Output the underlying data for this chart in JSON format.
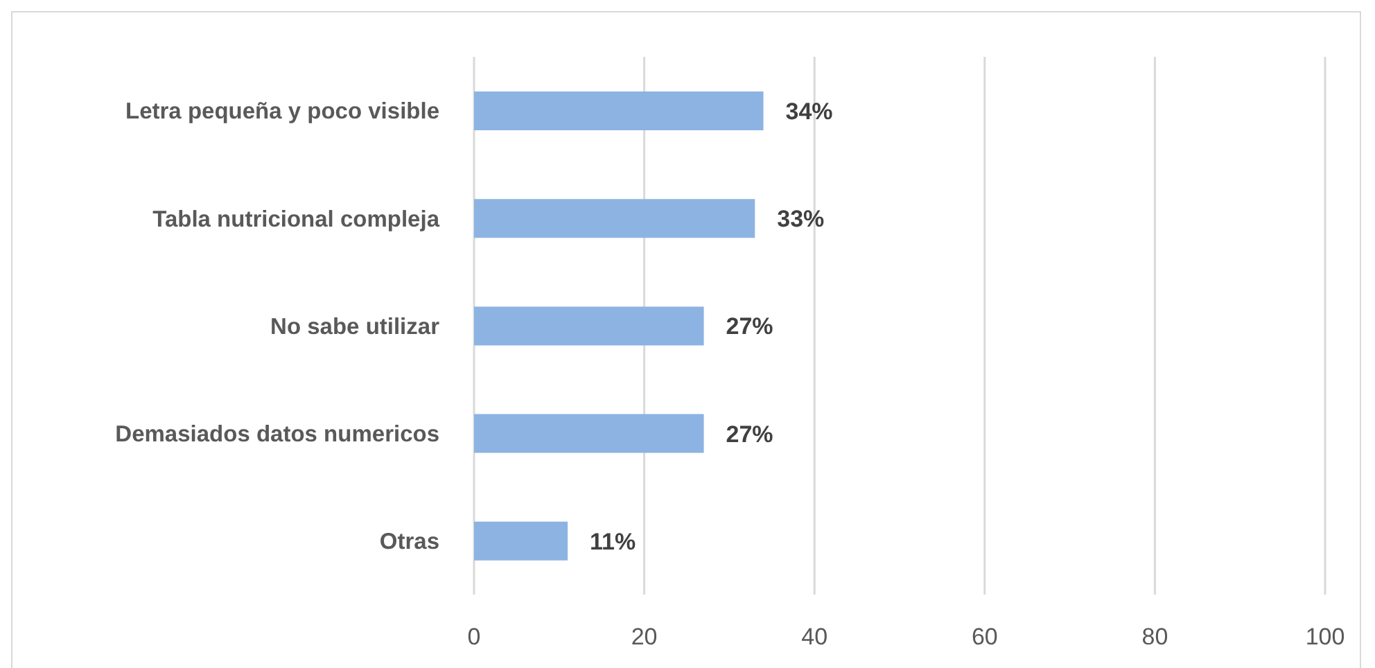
{
  "chart_data": {
    "type": "bar",
    "orientation": "horizontal",
    "categories": [
      "Letra pequeña y poco visible",
      "Tabla nutricional compleja",
      "No sabe utilizar",
      "Demasiados datos numericos",
      "Otras"
    ],
    "values": [
      34,
      33,
      27,
      27,
      11
    ],
    "color": "#8db3e2",
    "value_labels": [
      "34%",
      "33%",
      "27%",
      "27%",
      "11%"
    ],
    "xlim": [
      0,
      100
    ],
    "xticks": [
      0,
      20,
      40,
      60,
      80,
      100
    ],
    "grid": "x"
  }
}
